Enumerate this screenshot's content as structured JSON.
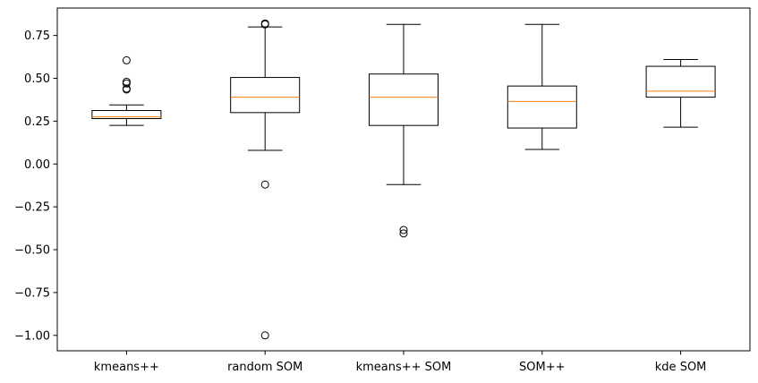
{
  "chart_data": {
    "type": "box",
    "title": "",
    "xlabel": "",
    "ylabel": "",
    "ylim": [
      -1.09,
      0.91
    ],
    "yticks": [
      0.75,
      0.5,
      0.25,
      0.0,
      -0.25,
      -0.5,
      -0.75,
      -1.0
    ],
    "ytick_labels": [
      "0.75",
      "0.50",
      "0.25",
      "0.00",
      "−0.25",
      "−0.50",
      "−0.75",
      "−1.00"
    ],
    "grid": false,
    "box_color": "#000000",
    "median_color": "#ff7f0e",
    "categories": [
      "kmeans++",
      "random SOM",
      "kmeans++ SOM",
      "SOM++",
      "kde SOM"
    ],
    "boxes": [
      {
        "whisker_low": 0.225,
        "q1": 0.265,
        "median": 0.275,
        "q3": 0.312,
        "whisker_high": 0.345,
        "outliers": [
          0.605,
          0.48,
          0.47,
          0.44,
          0.435
        ]
      },
      {
        "whisker_low": 0.08,
        "q1": 0.3,
        "median": 0.39,
        "q3": 0.505,
        "whisker_high": 0.8,
        "outliers": [
          0.82,
          0.815,
          -0.12,
          -1.0
        ]
      },
      {
        "whisker_low": -0.12,
        "q1": 0.225,
        "median": 0.39,
        "q3": 0.525,
        "whisker_high": 0.815,
        "outliers": [
          -0.385,
          -0.405
        ]
      },
      {
        "whisker_low": 0.085,
        "q1": 0.21,
        "median": 0.365,
        "q3": 0.455,
        "whisker_high": 0.815,
        "outliers": []
      },
      {
        "whisker_low": 0.215,
        "q1": 0.39,
        "median": 0.425,
        "q3": 0.57,
        "whisker_high": 0.61,
        "outliers": []
      }
    ]
  }
}
